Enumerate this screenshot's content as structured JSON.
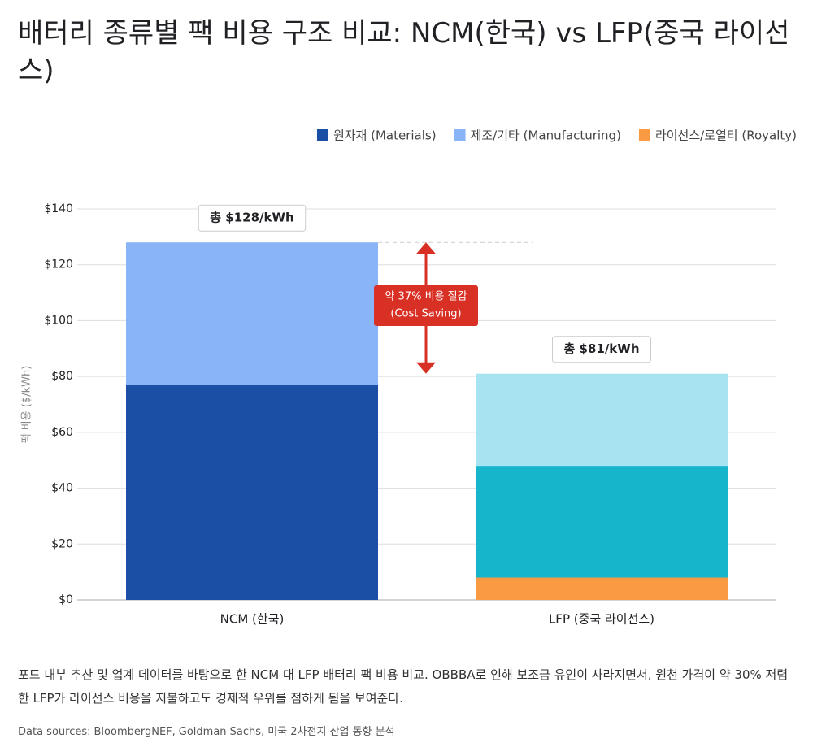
{
  "chart_data": {
    "type": "stacked_bar",
    "title": "배터리 종류별 팩 비용 구조 비교: NCM(한국) vs LFP(중국 라이선스)",
    "ylabel": "팩 비용 ($/kWh)",
    "categories": [
      "NCM (한국)",
      "LFP (중국 라이선스)"
    ],
    "series": [
      {
        "name": "원자재 (Materials)",
        "color": "#1a4fa5",
        "point_colors": [
          "#1a4fa5",
          "#17b5cc"
        ],
        "values": [
          77,
          40
        ]
      },
      {
        "name": "제조/기타 (Manufacturing)",
        "color": "#8ab4f8",
        "point_colors": [
          "#8ab4f8",
          "#a5e4f0"
        ],
        "values": [
          51,
          33
        ]
      },
      {
        "name": "라이선스/로열티 (Royalty)",
        "color": "#fa9a42",
        "point_colors": [
          "#fa9a42",
          "#fa9a42"
        ],
        "values": [
          null,
          8
        ]
      }
    ],
    "total_labels": [
      "총 $128/kWh",
      "총 $81/kWh"
    ],
    "annotation": [
      "약 37% 비용 절감",
      "(Cost Saving)"
    ],
    "ylim": [
      0,
      140
    ],
    "yticks": [
      {
        "value": 0,
        "label": "$0"
      },
      {
        "value": 20,
        "label": "$20"
      },
      {
        "value": 40,
        "label": "$40"
      },
      {
        "value": 60,
        "label": "$60"
      },
      {
        "value": 80,
        "label": "$80"
      },
      {
        "value": 100,
        "label": "$100"
      },
      {
        "value": 120,
        "label": "$120"
      },
      {
        "value": 140,
        "label": "$140"
      }
    ],
    "grid": true,
    "legend": "top-right"
  },
  "caption": "포드 내부 추산 및 업계 데이터를 바탕으로 한 NCM 대 LFP 배터리 팩 비용 비교. OBBBA로 인해 보조금 유인이 사라지면서, 원천 가격이 약 30% 저렴한 LFP가 라이선스 비용을 지불하고도 경제적 우위를 점하게 됨을 보여준다.",
  "sources": {
    "label": "Data sources:",
    "links": [
      "BloombergNEF",
      "Goldman Sachs",
      "미국 2차전지 산업 동향 분석"
    ]
  }
}
